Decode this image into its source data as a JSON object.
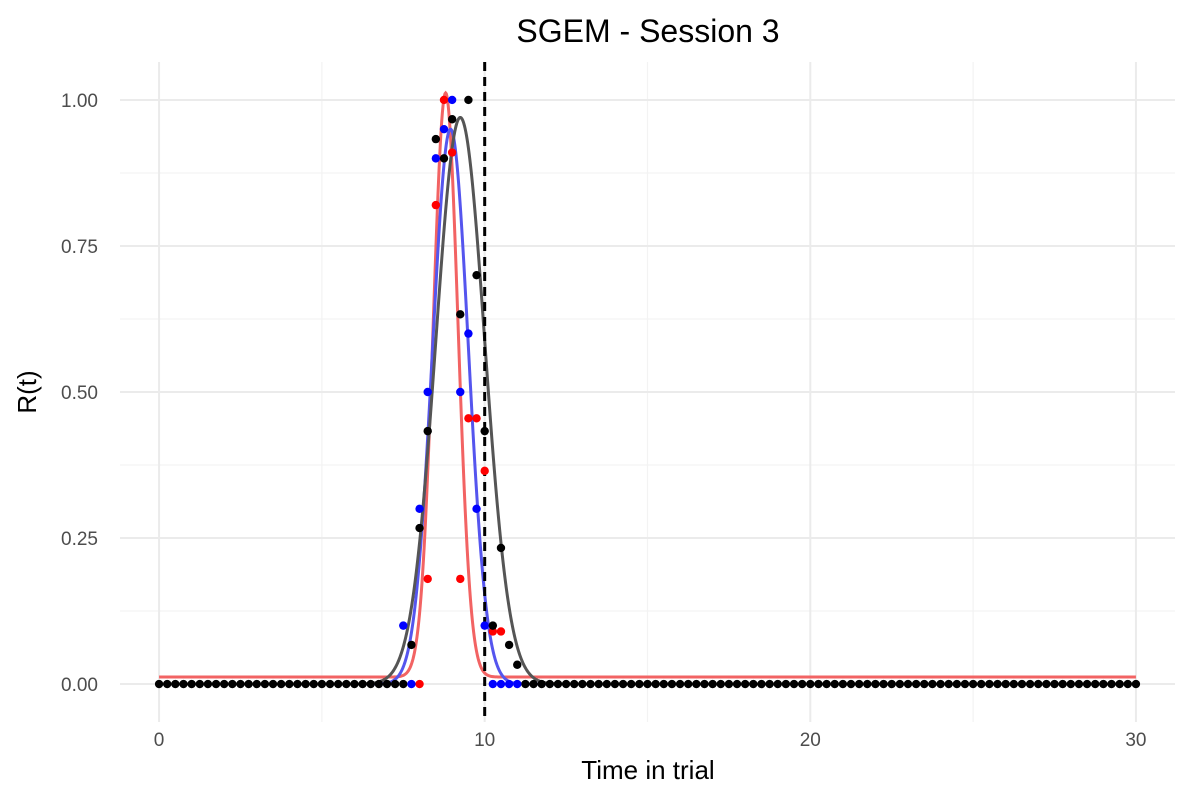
{
  "chart_data": {
    "type": "scatter",
    "title": "SGEM - Session 3",
    "xlabel": "Time in trial",
    "ylabel": "R(t)",
    "xlim": [
      -1.2,
      31.2
    ],
    "ylim": [
      -0.065,
      1.065
    ],
    "xticks": [
      0,
      10,
      20,
      30
    ],
    "xtick_labels": [
      "0",
      "10",
      "20",
      "30"
    ],
    "yticks": [
      0,
      0.25,
      0.5,
      0.75,
      1.0
    ],
    "ytick_labels": [
      "0.00",
      "0.25",
      "0.50",
      "0.75",
      "1.00"
    ],
    "grid": true,
    "legend": "none",
    "reference_line": {
      "x": 10,
      "style": "dashed",
      "color": "#000000"
    },
    "series": [
      {
        "color": "#0000ff",
        "points": [
          [
            7.5,
            0.1
          ],
          [
            7.75,
            0.0
          ],
          [
            8.0,
            0.3
          ],
          [
            8.25,
            0.5
          ],
          [
            8.5,
            0.9
          ],
          [
            8.75,
            0.95
          ],
          [
            9.0,
            1.0
          ],
          [
            9.25,
            0.5
          ],
          [
            9.5,
            0.6
          ],
          [
            9.75,
            0.3
          ],
          [
            10.0,
            0.1
          ],
          [
            10.25,
            0.0
          ],
          [
            10.5,
            0.0
          ],
          [
            10.75,
            0.0
          ],
          [
            11.0,
            0.0
          ]
        ],
        "curve": {
          "kind": "gaussian",
          "mu": 8.95,
          "sigma": 0.55,
          "amp": 0.95,
          "base": 0.0,
          "line_color": "#5555ee"
        }
      },
      {
        "color": "#ff0000",
        "points": [
          [
            8.0,
            0.0
          ],
          [
            8.25,
            0.18
          ],
          [
            8.5,
            0.82
          ],
          [
            8.75,
            1.0
          ],
          [
            9.0,
            0.91
          ],
          [
            9.25,
            0.18
          ],
          [
            9.5,
            0.455
          ],
          [
            9.75,
            0.455
          ],
          [
            10.0,
            0.365
          ],
          [
            10.25,
            0.09
          ],
          [
            10.5,
            0.09
          ]
        ],
        "curve": {
          "kind": "gaussian",
          "mu": 8.8,
          "sigma": 0.38,
          "amp": 1.0,
          "base": 0.012,
          "line_color": "#f26363"
        }
      },
      {
        "color": "#000000",
        "points": [
          [
            7.75,
            0.067
          ],
          [
            8.0,
            0.267
          ],
          [
            8.25,
            0.433
          ],
          [
            8.5,
            0.933
          ],
          [
            8.75,
            0.9
          ],
          [
            9.0,
            0.967
          ],
          [
            9.25,
            0.633
          ],
          [
            9.5,
            1.0
          ],
          [
            9.75,
            0.7
          ],
          [
            10.0,
            0.433
          ],
          [
            10.25,
            0.1
          ],
          [
            10.5,
            0.233
          ],
          [
            10.75,
            0.067
          ],
          [
            11.0,
            0.033
          ]
        ],
        "zeros_range": [
          0,
          30
        ],
        "zeros_step": 0.25,
        "curve": {
          "kind": "gaussian",
          "mu": 9.25,
          "sigma": 0.75,
          "amp": 0.97,
          "base": 0.0,
          "line_color": "#555555"
        }
      }
    ]
  }
}
